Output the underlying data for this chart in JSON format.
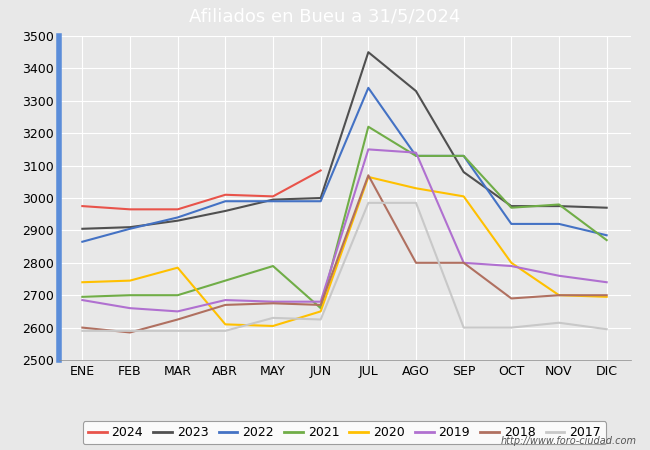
{
  "title": "Afiliados en Bueu a 31/5/2024",
  "title_color": "#ffffff",
  "title_bg_color": "#5b8dd9",
  "months": [
    "ENE",
    "FEB",
    "MAR",
    "ABR",
    "MAY",
    "JUN",
    "JUL",
    "AGO",
    "SEP",
    "OCT",
    "NOV",
    "DIC"
  ],
  "ylim": [
    2500,
    3500
  ],
  "yticks": [
    2500,
    2600,
    2700,
    2800,
    2900,
    3000,
    3100,
    3200,
    3300,
    3400,
    3500
  ],
  "series": {
    "2024": {
      "color": "#e8534a",
      "data": [
        2975,
        2965,
        2965,
        3010,
        3005,
        3085,
        null,
        null,
        null,
        null,
        null,
        null
      ]
    },
    "2023": {
      "color": "#505050",
      "data": [
        2905,
        2910,
        2930,
        2960,
        2995,
        3000,
        3450,
        3330,
        3080,
        2975,
        2975,
        2970
      ]
    },
    "2022": {
      "color": "#4472c4",
      "data": [
        2865,
        2905,
        2940,
        2990,
        2990,
        2990,
        3340,
        3130,
        3130,
        2920,
        2920,
        2885
      ]
    },
    "2021": {
      "color": "#70ad47",
      "data": [
        2695,
        2700,
        2700,
        2745,
        2790,
        2660,
        3220,
        3130,
        3130,
        2970,
        2980,
        2870
      ]
    },
    "2020": {
      "color": "#ffc000",
      "data": [
        2740,
        2745,
        2785,
        2610,
        2605,
        2650,
        3065,
        3030,
        3005,
        2800,
        2700,
        2695
      ]
    },
    "2019": {
      "color": "#b070d0",
      "data": [
        2685,
        2660,
        2650,
        2685,
        2680,
        2680,
        3150,
        3140,
        2800,
        2790,
        2760,
        2740
      ]
    },
    "2018": {
      "color": "#b07060",
      "data": [
        2600,
        2585,
        2625,
        2670,
        2675,
        2670,
        3070,
        2800,
        2800,
        2690,
        2700,
        2700
      ]
    },
    "2017": {
      "color": "#c8c8c8",
      "data": [
        2590,
        2590,
        2590,
        2590,
        2630,
        2625,
        2985,
        2985,
        2600,
        2600,
        2615,
        2595
      ]
    }
  },
  "url": "http://www.foro-ciudad.com",
  "plot_bg_color": "#e8e8e8",
  "fig_bg_color": "#e8e8e8",
  "grid_color": "#ffffff",
  "left_bar_color": "#5b8dd9"
}
